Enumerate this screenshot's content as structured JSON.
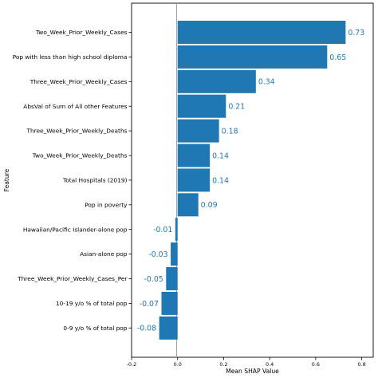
{
  "chart_data": {
    "type": "bar",
    "orientation": "horizontal",
    "categories": [
      "Two_Week_Prior_Weekly_Cases",
      "Pop with less than high school diploma",
      "Three_Week_Prior_Weekly_Cases",
      "AbsVal of Sum of All other Features",
      "Three_Week_Prior_Weekly_Deaths",
      "Two_Week_Prior_Weekly_Deaths",
      "Total Hospitals (2019)",
      "Pop in poverty",
      "Hawaiian/Pacific Islander-alone pop",
      "Asian-alone pop",
      "Three_Week_Prior_Weekly_Cases_Per",
      "10-19 y/o % of total pop",
      "0-9 y/o % of total pop"
    ],
    "values": [
      0.73,
      0.65,
      0.34,
      0.21,
      0.18,
      0.14,
      0.14,
      0.09,
      -0.01,
      -0.03,
      -0.05,
      -0.07,
      -0.08
    ],
    "value_labels": [
      "0.73",
      "0.65",
      "0.34",
      "0.21",
      "0.18",
      "0.14",
      "0.14",
      "0.09",
      "-0.01",
      "-0.03",
      "-0.05",
      "-0.07",
      "-0.08"
    ],
    "xlabel": "Mean SHAP Value",
    "ylabel": "Feature",
    "xlim": [
      -0.2,
      0.85
    ],
    "xticks": [
      -0.2,
      0.0,
      0.2,
      0.4,
      0.6,
      0.8
    ],
    "xtick_labels": [
      "-0.2",
      "0.0",
      "0.2",
      "0.4",
      "0.6",
      "0.8"
    ],
    "grid": false,
    "colors": {
      "bar": "#1f77b4",
      "value_label": "#1f77b4"
    }
  }
}
